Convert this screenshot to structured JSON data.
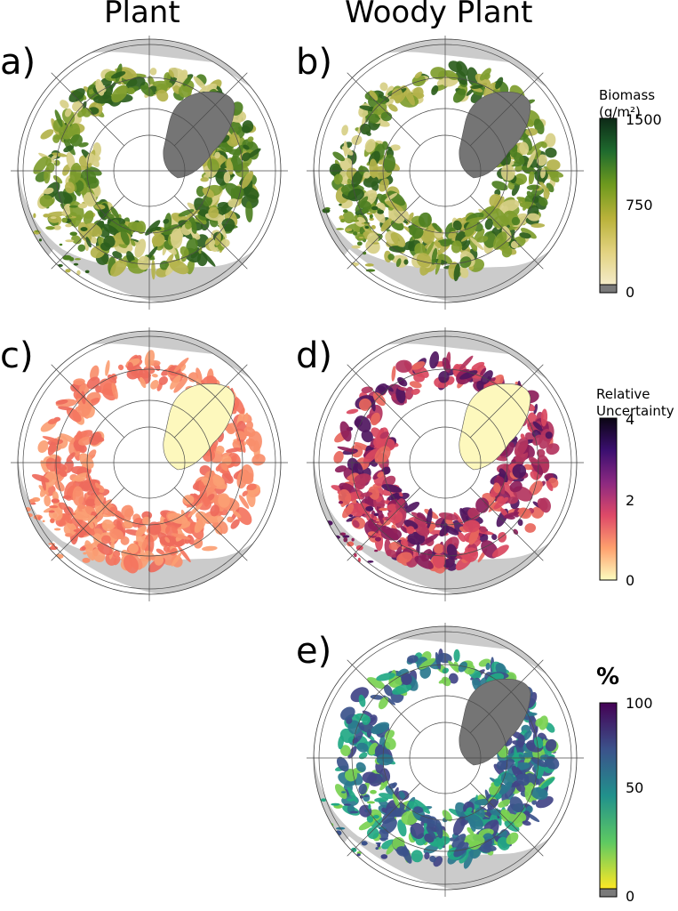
{
  "columns": {
    "left": "Plant",
    "right": "Woody Plant"
  },
  "panels": [
    {
      "id": "a",
      "label": "a)",
      "column": "Plant",
      "variable": "biomass"
    },
    {
      "id": "b",
      "label": "b)",
      "column": "Woody Plant",
      "variable": "biomass"
    },
    {
      "id": "c",
      "label": "c)",
      "column": "Plant",
      "variable": "relative-uncertainty"
    },
    {
      "id": "d",
      "label": "d)",
      "column": "Woody Plant",
      "variable": "relative-uncertainty"
    },
    {
      "id": "e",
      "label": "e)",
      "column": "Woody Plant",
      "variable": "percent"
    }
  ],
  "colorbars": {
    "biomass": {
      "title_line1": "Biomass",
      "title_line2": "(g/m²)",
      "ticks": [
        "1500",
        "750",
        "0"
      ],
      "colors": [
        "#0d2a17",
        "#1f6b2e",
        "#6f9a1e",
        "#b9b23a",
        "#e2d27f",
        "#f4ebc8"
      ],
      "nodata_color": "#7a7a7a"
    },
    "uncertainty": {
      "title_line1": "Relative",
      "title_line2": "Uncertainty",
      "ticks": [
        "4",
        "2",
        "0"
      ],
      "colors": [
        "#0b0514",
        "#3b0f70",
        "#8c2981",
        "#de4968",
        "#fe9f6d",
        "#fcfdbf"
      ]
    },
    "percent": {
      "title": "%",
      "ticks": [
        "100",
        "50",
        "0"
      ],
      "colors": [
        "#440154",
        "#3b528b",
        "#21918c",
        "#5ec962",
        "#fde725"
      ],
      "nodata_color": "#7a7a7a"
    }
  },
  "map_colors": {
    "ocean": "#cbcbcb",
    "land_background": "#ffffff",
    "greenland_biomass": "#757575",
    "greenland_uncertainty": "#fdf8bd",
    "graticule": "#4a4a4a",
    "biomass_palette": [
      "#2d5e1d",
      "#4d7f22",
      "#7f9d2e",
      "#b3b24a",
      "#d7cf85"
    ],
    "uncertainty_plant_palette": [
      "#f4745e",
      "#f88e6b",
      "#ee6a5c",
      "#fba074"
    ],
    "uncertainty_woody_palette": [
      "#8c1d5a",
      "#b3345e",
      "#d9485f",
      "#4f1660",
      "#e8675d"
    ],
    "percent_palette": [
      "#2a788e",
      "#22a884",
      "#3b528b",
      "#7ad151",
      "#414487"
    ]
  }
}
